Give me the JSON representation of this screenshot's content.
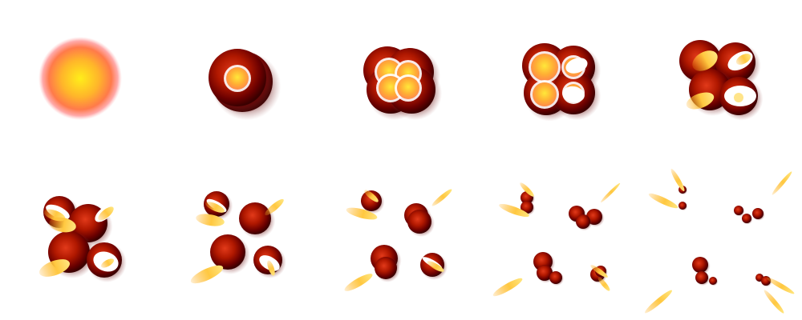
{
  "sprite_sheet": {
    "subject": "explosion-animation",
    "frame_count": 10,
    "rows": 2,
    "columns": 5,
    "colors": {
      "core_yellow": "#ffee1a",
      "core_orange": "#ff9a2a",
      "glow_pink": "#ff8f8f",
      "debris_dark_red": "#5a0000",
      "debris_red": "#b01800",
      "debris_highlight": "#e23a1a",
      "flame_yellow": "#ffe066",
      "flame_orange": "#f5a020",
      "background": "#ffffff"
    }
  }
}
